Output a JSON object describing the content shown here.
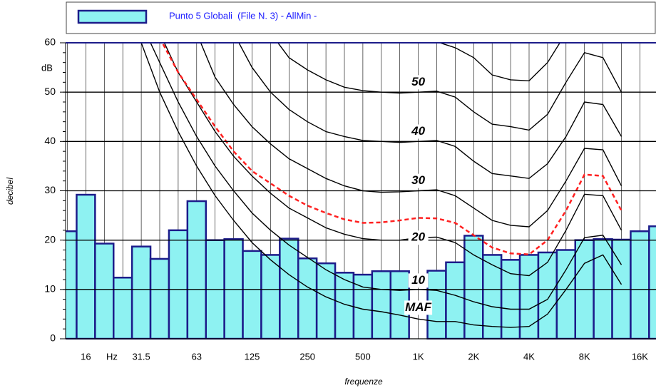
{
  "chart_data": {
    "type": "bar",
    "x_label": "frequenze",
    "y_label": "decibel",
    "y_unit": "dB",
    "x_unit": "Hz",
    "categories": [
      null,
      "16",
      null,
      null,
      "31.5",
      null,
      null,
      "63",
      null,
      null,
      "125",
      null,
      null,
      "250",
      null,
      null,
      "500",
      null,
      null,
      "1K",
      null,
      null,
      "2K",
      null,
      null,
      "4K",
      null,
      null,
      "8K",
      null,
      null,
      "16K",
      null
    ],
    "series": [
      {
        "name": "Punto 5 Globali  (File N. 3) - AllMin -",
        "color": "#8ef2f2",
        "edge_color": "#1c1c8a",
        "values": [
          21.8,
          29.2,
          19.3,
          12.4,
          18.7,
          16.2,
          22,
          27.9,
          20,
          20.2,
          17.8,
          17,
          20.3,
          16.3,
          15.3,
          13.4,
          13,
          13.7,
          13.7,
          null,
          13.8,
          15.5,
          20.9,
          17,
          16,
          17,
          17.5,
          18,
          20,
          20.2,
          20.1,
          21.8,
          22.8
        ]
      }
    ],
    "contours": [
      {
        "type": "line",
        "color": "#000000",
        "dashed": false,
        "values": [
          null,
          null,
          null,
          null,
          60,
          50,
          42,
          35,
          29,
          24,
          19.5,
          16,
          13,
          10.5,
          8.5,
          7,
          6,
          5.5,
          4.8,
          4,
          3.5,
          3.5,
          2.8,
          2.5,
          2.3,
          2.5,
          5,
          10,
          15.3,
          17,
          11,
          null,
          null
        ]
      },
      {
        "type": "line",
        "color": "#000000",
        "dashed": false,
        "values": [
          null,
          null,
          null,
          null,
          64,
          56,
          48,
          41,
          35,
          30,
          25.5,
          22,
          19,
          16.5,
          14,
          12,
          10.5,
          10,
          9.8,
          10,
          9.8,
          8.8,
          7.5,
          6.5,
          6,
          6,
          8,
          14,
          20.5,
          21,
          15,
          null,
          null
        ]
      },
      {
        "type": "line",
        "color": "#000000",
        "dashed": false,
        "values": [
          null,
          null,
          null,
          null,
          null,
          62,
          54,
          48,
          42,
          37,
          33,
          29.5,
          26.5,
          24.5,
          22.5,
          21.2,
          20.3,
          20,
          20,
          20.5,
          20.6,
          19.5,
          17,
          15,
          13.2,
          12.8,
          15.5,
          22,
          29.3,
          29,
          22,
          null,
          null
        ]
      },
      {
        "type": "line",
        "color": "#ff2020",
        "dashed": true,
        "values": [
          null,
          null,
          null,
          null,
          null,
          61,
          54,
          48.5,
          43,
          38,
          34,
          31.5,
          29,
          27,
          25.5,
          24.2,
          23.5,
          23.6,
          24,
          24.5,
          24.4,
          23.5,
          21,
          18.5,
          17.3,
          17.1,
          20,
          26,
          33.3,
          33,
          26,
          null,
          null
        ]
      },
      {
        "type": "line",
        "color": "#000000",
        "dashed": false,
        "values": [
          null,
          null,
          null,
          null,
          null,
          null,
          null,
          62,
          53,
          47.5,
          43,
          39.5,
          36.5,
          34.5,
          32.5,
          31,
          30,
          29.7,
          29.8,
          30,
          30.2,
          29,
          26.5,
          24,
          23,
          22.7,
          26,
          32,
          38.6,
          38.3,
          31,
          null,
          null
        ]
      },
      {
        "type": "line",
        "color": "#000000",
        "dashed": false,
        "values": [
          null,
          null,
          null,
          null,
          null,
          null,
          null,
          null,
          null,
          62,
          55,
          50,
          46.5,
          44,
          42,
          41,
          40.2,
          40,
          39.8,
          40,
          40.2,
          39,
          36,
          33.5,
          33,
          32.5,
          35.5,
          41,
          48,
          47.5,
          41,
          null,
          null
        ]
      },
      {
        "type": "line",
        "color": "#000000",
        "dashed": false,
        "values": [
          null,
          null,
          null,
          null,
          null,
          null,
          null,
          null,
          null,
          null,
          null,
          62,
          57,
          54.5,
          52.5,
          51,
          50.3,
          50,
          49.8,
          50,
          50.2,
          49,
          46,
          43.5,
          43,
          42.3,
          45.5,
          52,
          58,
          57,
          50,
          null,
          null
        ]
      },
      {
        "type": "line",
        "color": "#000000",
        "dashed": false,
        "values": [
          null,
          null,
          null,
          null,
          null,
          null,
          null,
          null,
          null,
          null,
          null,
          null,
          null,
          null,
          null,
          null,
          null,
          null,
          null,
          60.5,
          60.2,
          59,
          57,
          53.5,
          52.5,
          52.3,
          56,
          62,
          null,
          null,
          null,
          null,
          null
        ]
      }
    ],
    "annotations": [
      {
        "text": "50",
        "x": 19,
        "y": 52
      },
      {
        "text": "40",
        "x": 19,
        "y": 42
      },
      {
        "text": "30",
        "x": 19,
        "y": 32
      },
      {
        "text": "20",
        "x": 19,
        "y": 20.5
      },
      {
        "text": "10",
        "x": 19,
        "y": 11.8
      },
      {
        "text": "MAF",
        "x": 19,
        "y": 6.3
      }
    ],
    "ylim": [
      0,
      60
    ],
    "yticks": [
      0,
      10,
      20,
      30,
      40,
      50,
      60
    ],
    "grid": true
  }
}
